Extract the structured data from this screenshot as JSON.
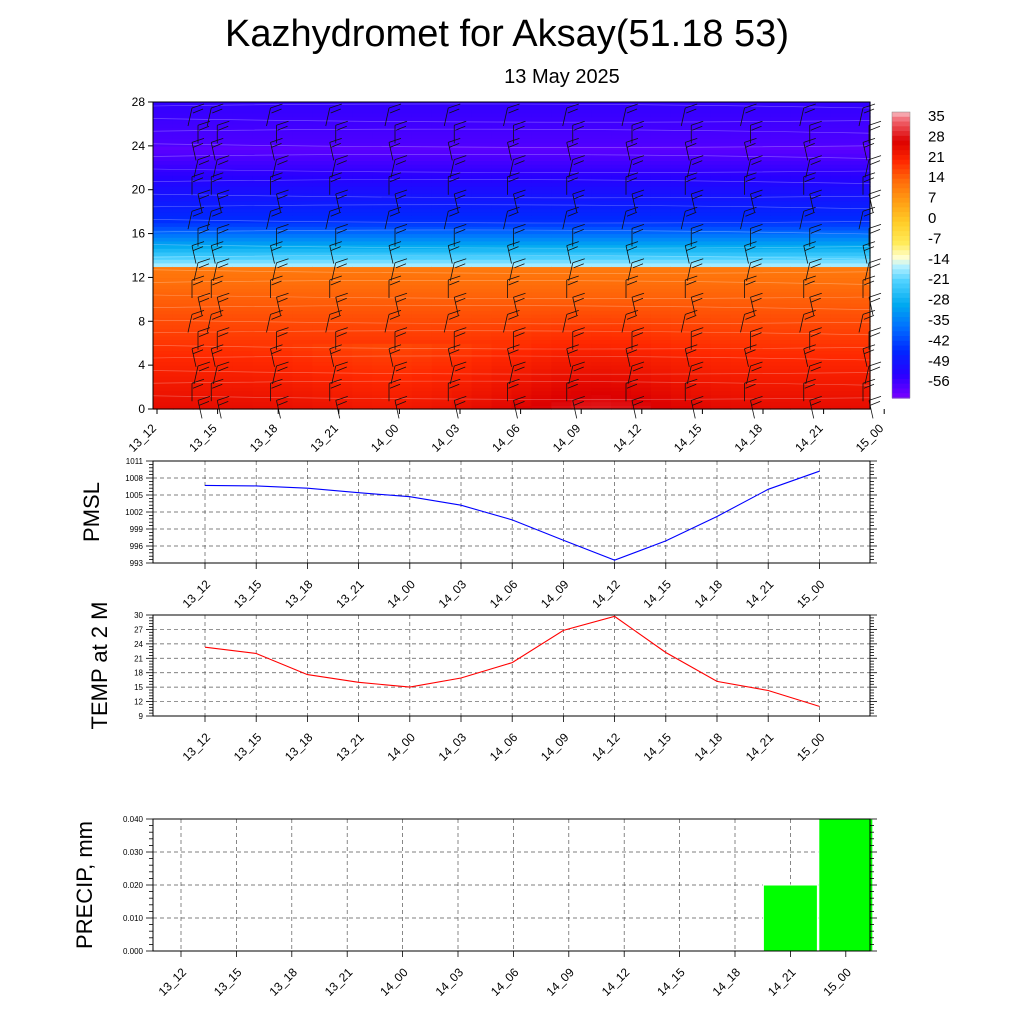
{
  "title": "Kazhydromet for Aksay(51.18 53)",
  "subtitle": "13 May 2025",
  "time_labels": [
    "13_12",
    "13_15",
    "13_18",
    "13_21",
    "14_00",
    "14_03",
    "14_06",
    "14_09",
    "14_12",
    "14_15",
    "14_18",
    "14_21",
    "15_00"
  ],
  "chart_data": [
    {
      "type": "heatmap",
      "y_ticks": [
        0,
        4,
        8,
        12,
        16,
        20,
        24,
        28
      ],
      "ylim": [
        0,
        28
      ],
      "colorbar_labels": [
        35,
        28,
        21,
        14,
        7,
        0,
        -7,
        -14,
        -21,
        -28,
        -35,
        -42,
        -49,
        -56
      ],
      "colorbar_range": [
        -60,
        38
      ]
    },
    {
      "type": "line",
      "ylabel": "PMSL",
      "y_ticks": [
        993,
        996,
        999,
        1002,
        1005,
        1008,
        1011
      ],
      "ylim": [
        993,
        1011
      ],
      "values": [
        1006.7,
        1006.6,
        1006.2,
        1005.4,
        1004.7,
        1003.2,
        1000.6,
        997.0,
        993.5,
        996.9,
        1001.2,
        1006.0,
        1009.2
      ],
      "color": "#0000ff"
    },
    {
      "type": "line",
      "ylabel": "TEMP at 2 M",
      "y_ticks": [
        9,
        12,
        15,
        18,
        21,
        24,
        27,
        30
      ],
      "ylim": [
        9,
        30
      ],
      "values": [
        23.3,
        22.0,
        17.6,
        16.0,
        15.0,
        16.9,
        20.1,
        26.8,
        29.7,
        22.2,
        16.2,
        14.3,
        11.0
      ],
      "color": "#ff0000"
    },
    {
      "type": "bar",
      "ylabel": "PRECIP, mm",
      "y_ticks": [
        "0.000",
        "0.010",
        "0.020",
        "0.030",
        "0.040"
      ],
      "ylim": [
        0,
        0.04
      ],
      "values": [
        0,
        0,
        0,
        0,
        0,
        0,
        0,
        0,
        0,
        0,
        0,
        0.02,
        0.04
      ],
      "color": "#00ff00"
    }
  ]
}
